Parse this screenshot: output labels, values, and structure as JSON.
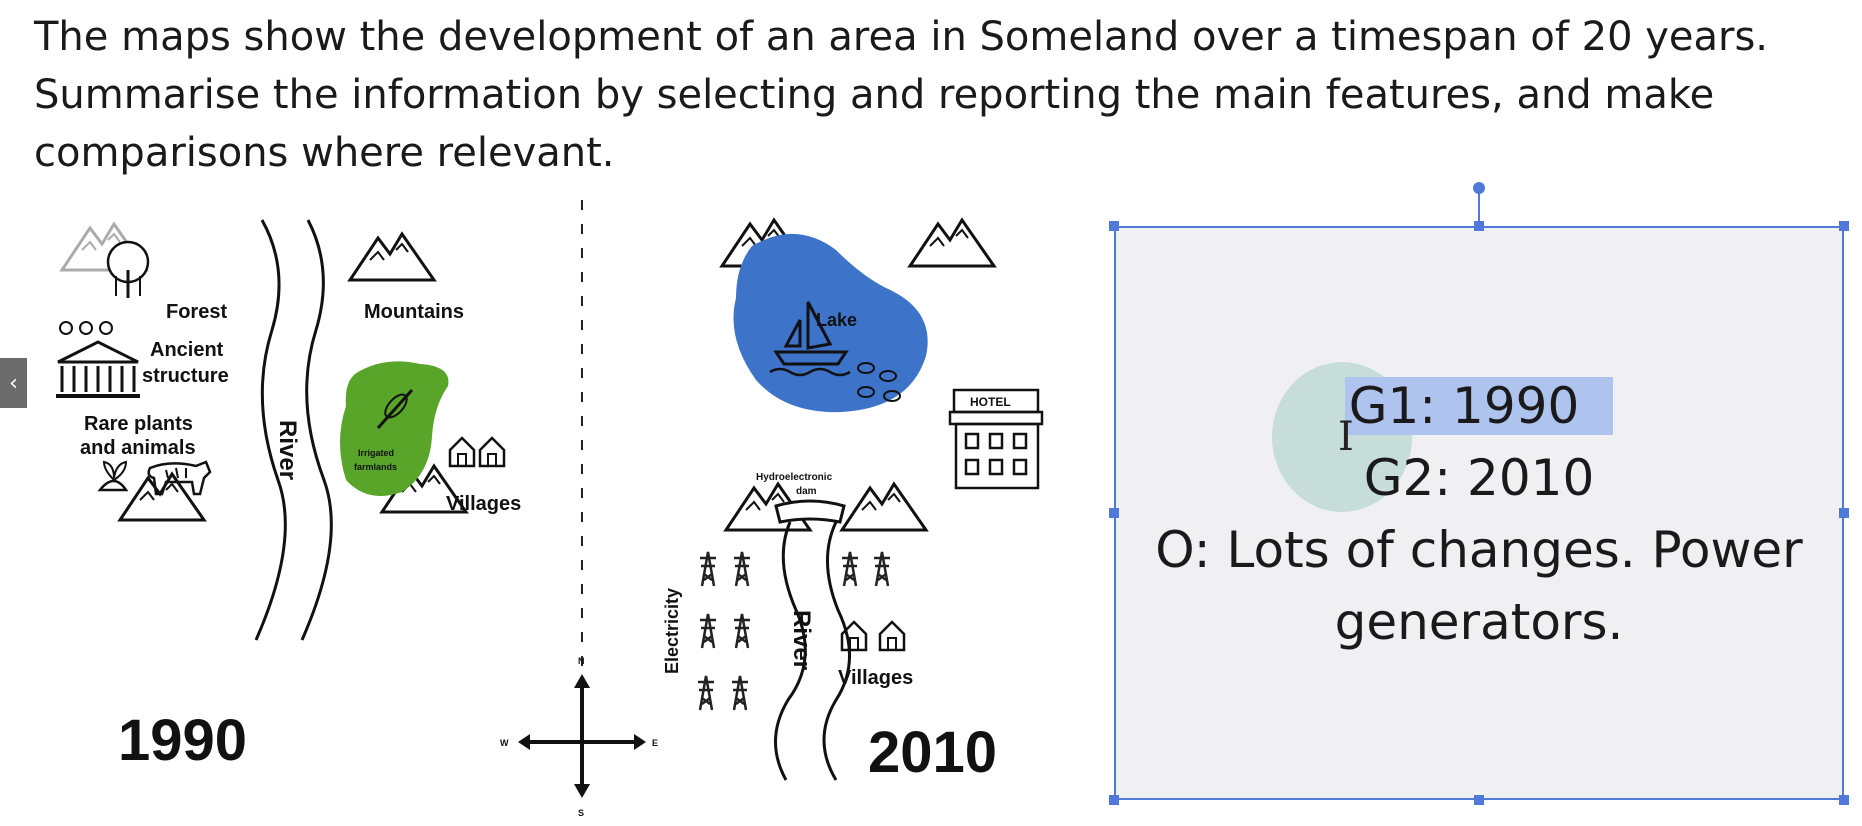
{
  "prompt": {
    "line1": "The maps show the development of an area in Someland over a timespan of 20 years.",
    "line2": "Summarise the information by selecting and reporting the main features, and make",
    "line3": "comparisons where relevant."
  },
  "map_1990": {
    "year": "1990",
    "forest": "Forest",
    "mountains": "Mountains",
    "ancient_1": "Ancient",
    "ancient_2": "structure",
    "rare_1": "Rare plants",
    "rare_2": "and animals",
    "river": "River",
    "farm_1": "Irrigated",
    "farm_2": "farmlands",
    "villages": "Villages"
  },
  "map_2010": {
    "year": "2010",
    "lake": "Lake",
    "hotel": "HOTEL",
    "dam_1": "Hydroelectronic",
    "dam_2": "dam",
    "electricity": "Electricity",
    "river": "River",
    "villages": "Villages"
  },
  "compass": {
    "n": "N",
    "s": "S",
    "e": "E",
    "w": "W"
  },
  "notes": {
    "g1": "G1: 1990",
    "g2": "G2: 2010",
    "o1": "O: Lots of changes. Power",
    "o2": "generators."
  },
  "colors": {
    "lake": "#3d74c9",
    "farmland": "#58a52a",
    "selection": "#4f7ad9",
    "highlight": "#aec3ee"
  },
  "icons": [
    "mountain-icon",
    "tree-icon",
    "temple-icon",
    "plant-icon",
    "tiger-icon",
    "house-icon",
    "boat-icon",
    "fish-icon",
    "hotel-icon",
    "pylon-icon",
    "compass-icon",
    "wheat-icon"
  ]
}
